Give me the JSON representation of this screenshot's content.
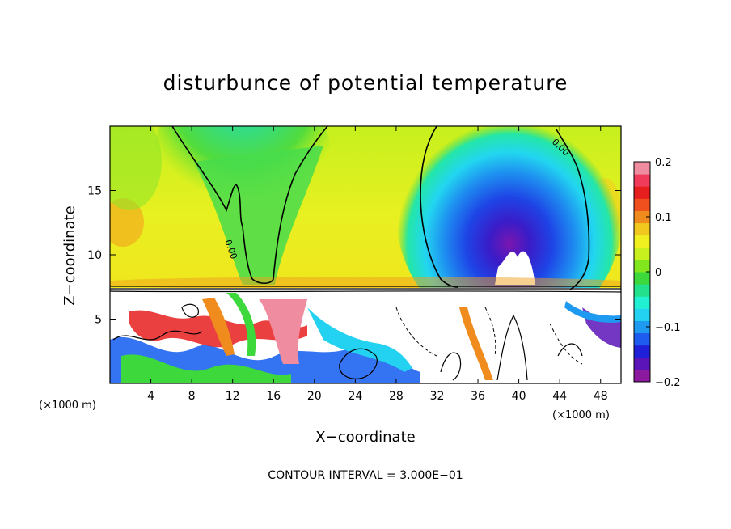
{
  "chart_data": {
    "type": "heatmap",
    "title": "disturbunce of potential temperature",
    "xlabel": "X−coordinate",
    "ylabel": "Z−coordinate",
    "x_unit_left": "(×1000 m)",
    "x_unit_right": "(×1000 m)",
    "footer": "CONTOUR INTERVAL = 3.000E−01",
    "xlim": [
      0,
      50
    ],
    "ylim": [
      0,
      20
    ],
    "x_ticks": [
      4,
      8,
      12,
      16,
      20,
      24,
      28,
      32,
      36,
      40,
      44,
      48
    ],
    "x_tick_labels": [
      "4",
      "8",
      "12",
      "16",
      "20",
      "24",
      "28",
      "32",
      "36",
      "40",
      "44",
      "48"
    ],
    "y_ticks": [
      5,
      10,
      15
    ],
    "y_tick_labels": [
      "5",
      "10",
      "15"
    ],
    "colorbar": {
      "min": -0.2,
      "max": 0.2,
      "ticks": [
        0.2,
        0.1,
        0,
        -0.1,
        -0.2
      ],
      "tick_labels": [
        "0.2",
        "0.1",
        "0",
        "−0.1",
        "−0.2"
      ],
      "colors": [
        "#8b1a9e",
        "#5a14b8",
        "#2020d8",
        "#1e5cf0",
        "#1e9af0",
        "#22d2f0",
        "#22f0d2",
        "#22e08c",
        "#3cd83c",
        "#82e61e",
        "#c8f01e",
        "#f0f020",
        "#f0c81e",
        "#f08c1e",
        "#f0501e",
        "#e61e1e",
        "#f03c5a",
        "#f08ca0"
      ]
    },
    "contour_labels": [
      {
        "text": "0.00",
        "x": 44.5,
        "y": 18.4
      },
      {
        "text": "0.00",
        "x": 12.2,
        "y": 10.5
      }
    ]
  }
}
